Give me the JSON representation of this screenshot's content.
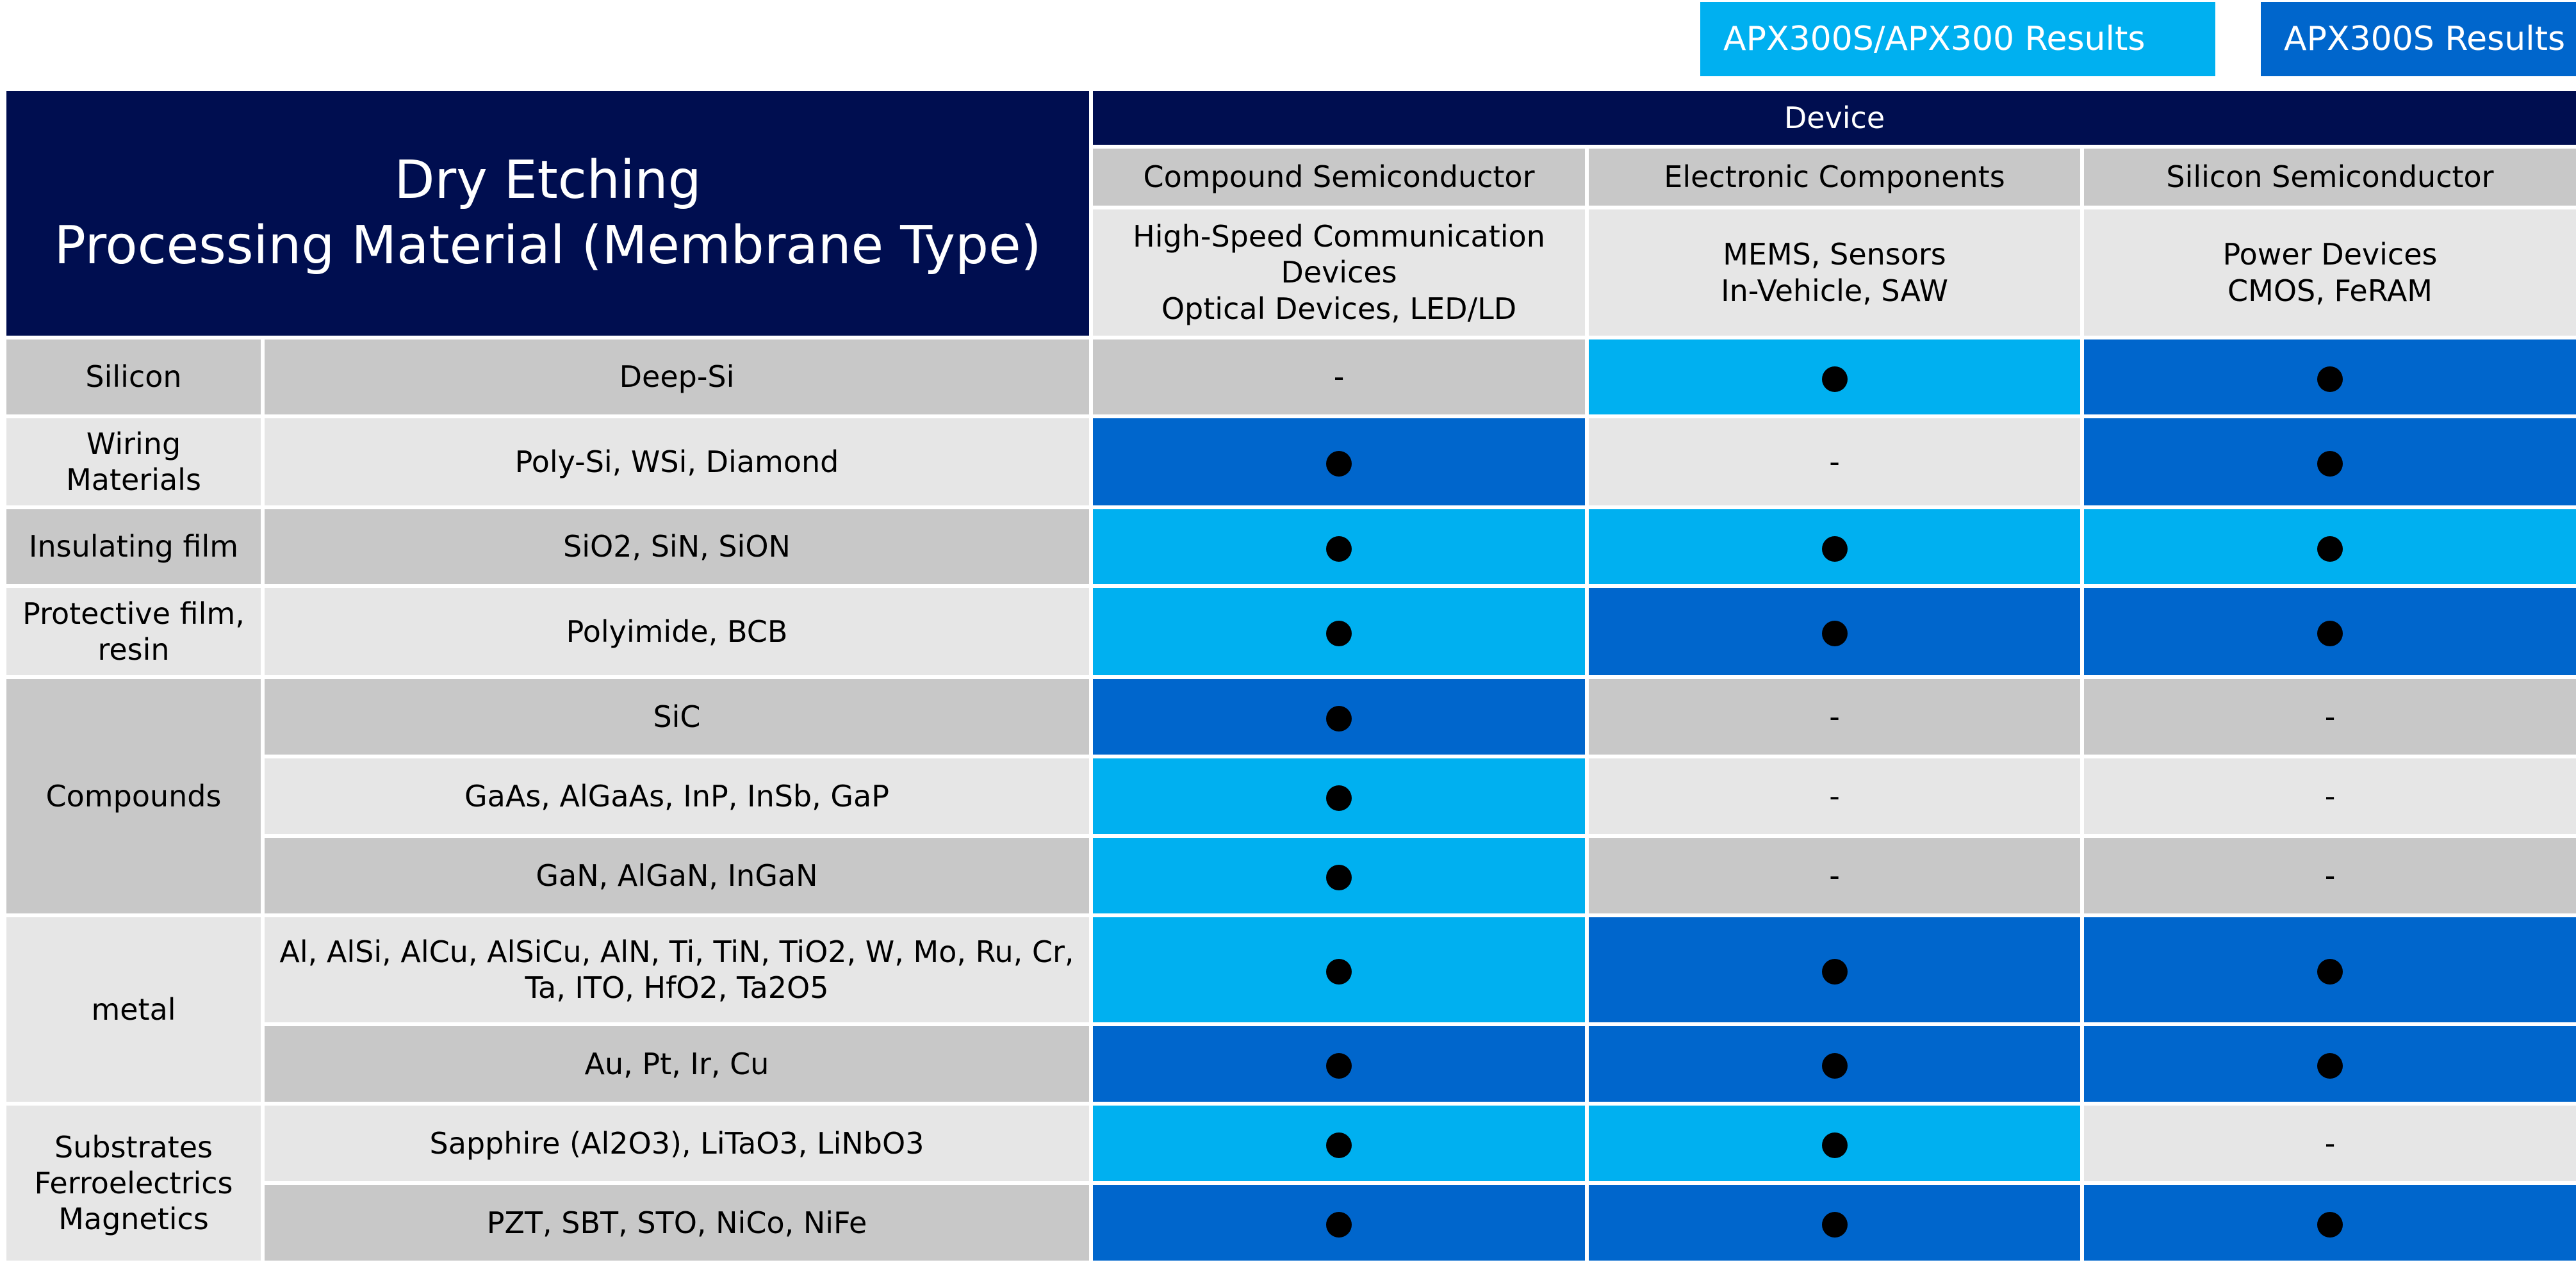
{
  "legend": {
    "light_label": "APX300S/APX300 Results",
    "dark_label": "APX300S Results",
    "light_color": "#00b0f0",
    "dark_color": "#0066cc"
  },
  "title": "Dry Etching\nProcessing Material (Membrane Type)",
  "device_header": "Device",
  "categories": [
    {
      "name": "Compound Semiconductor",
      "desc": "High-Speed Communication\nDevices\nOptical Devices, LED/LD"
    },
    {
      "name": "Electronic Components",
      "desc": "MEMS, Sensors\nIn-Vehicle, SAW"
    },
    {
      "name": "Silicon Semiconductor",
      "desc": "Power Devices\nCMOS, FeRAM"
    }
  ],
  "groups": {
    "silicon": "Silicon",
    "wiring": "Wiring\nMaterials",
    "insulating": "Insulating film",
    "protective": "Protective film,\nresin",
    "compounds": "Compounds",
    "metal": "metal",
    "substrates": "Substrates\nFerroelectrics\nMagnetics"
  },
  "materials": {
    "deep_si": "Deep-Si",
    "poly_si": "Poly-Si, WSi, Diamond",
    "sio2": "SiO2, SiN, SiON",
    "polyimide": "Polyimide, BCB",
    "sic": "SiC",
    "gaas": "GaAs, AlGaAs, InP, InSb, GaP",
    "gan": "GaN, AlGaN, InGaN",
    "al": "Al, AlSi, AlCu, AlSiCu, AlN, Ti, TiN, TiO2, W, Mo, Ru, Cr,\nTa, ITO, HfO2, Ta2O5",
    "au": "Au, Pt, Ir, Cu",
    "sapphire": "Sapphire (Al2O3), LiTaO3, LiNbO3",
    "pzt": "PZT, SBT, STO, NiCo, NiFe"
  },
  "marks": {
    "dash": "-"
  }
}
